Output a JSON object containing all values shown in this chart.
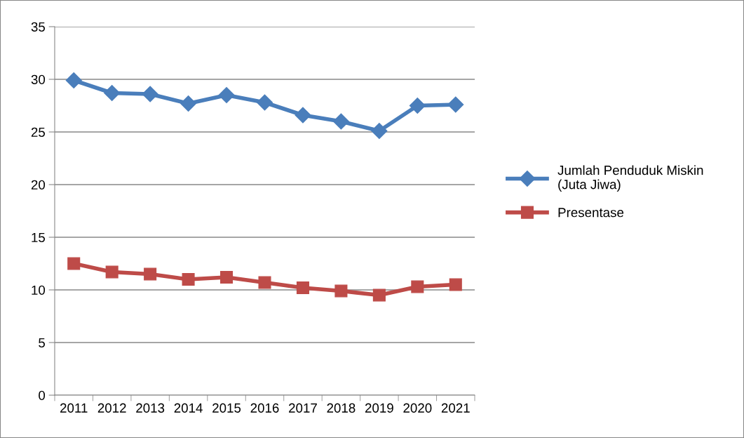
{
  "chart_data": {
    "type": "line",
    "categories": [
      "2011",
      "2012",
      "2013",
      "2014",
      "2015",
      "2016",
      "2017",
      "2018",
      "2019",
      "2020",
      "2021"
    ],
    "series": [
      {
        "name": "Jumlah Penduduk Miskin\n(Juta Jiwa)",
        "color": "#4a7ebb",
        "marker": "diamond",
        "values": [
          29.9,
          28.7,
          28.6,
          27.7,
          28.5,
          27.8,
          26.6,
          26.0,
          25.1,
          27.5,
          27.6
        ]
      },
      {
        "name": "Presentase",
        "color": "#be4b48",
        "marker": "square",
        "values": [
          12.5,
          11.7,
          11.5,
          11.0,
          11.2,
          10.7,
          10.2,
          9.9,
          9.5,
          10.3,
          10.5
        ]
      }
    ],
    "ylim": [
      0,
      35
    ],
    "yticks": [
      0,
      5,
      10,
      15,
      20,
      25,
      30,
      35
    ],
    "grid": "y",
    "legend": "right",
    "line_style": "solid"
  }
}
